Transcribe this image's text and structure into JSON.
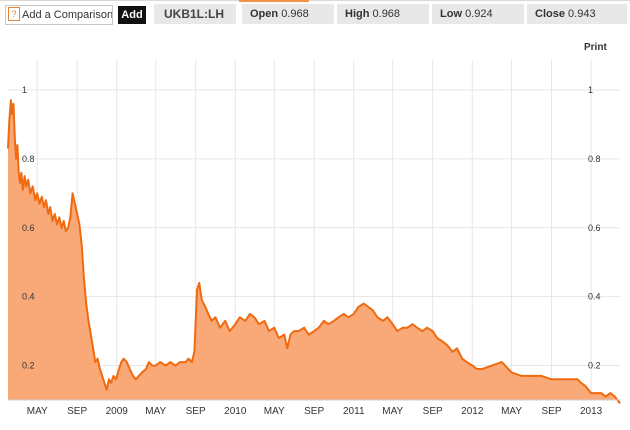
{
  "toolbar": {
    "help_glyph": "?",
    "compare_label": "Add a Comparison",
    "add_label": "Add",
    "ticker": "UKB1L:LH",
    "open_label": "Open",
    "open_value": "0.968",
    "high_label": "High",
    "high_value": "0.968",
    "low_label": "Low",
    "low_value": "0.924",
    "close_label": "Close",
    "close_value": "0.943"
  },
  "print_label": "Print",
  "colors": {
    "line": "#f06a0f",
    "fill": "#f9a878",
    "grid": "#e6e6e6",
    "accent": "#f29346"
  },
  "chart_data": {
    "type": "area",
    "title": "",
    "xlabel": "",
    "ylabel": "",
    "ylim": [
      0.1,
      1.0
    ],
    "xlim": [
      "2008-02-01",
      "2013-03-31"
    ],
    "grid": true,
    "y_ticks_left": [
      "1",
      "0.8",
      "0.6",
      "0.4",
      "0.2"
    ],
    "y_ticks_right": [
      "1",
      "0.8",
      "0.6",
      "0.4",
      "0.2"
    ],
    "y_tick_values": [
      1.0,
      0.8,
      0.6,
      0.4,
      0.2
    ],
    "x_ticks": [
      {
        "label": "MAY",
        "date": "2008-05-01"
      },
      {
        "label": "SEP",
        "date": "2008-09-01"
      },
      {
        "label": "2009",
        "date": "2009-01-01"
      },
      {
        "label": "MAY",
        "date": "2009-05-01"
      },
      {
        "label": "SEP",
        "date": "2009-09-01"
      },
      {
        "label": "2010",
        "date": "2010-01-01"
      },
      {
        "label": "MAY",
        "date": "2010-05-01"
      },
      {
        "label": "SEP",
        "date": "2010-09-01"
      },
      {
        "label": "2011",
        "date": "2011-01-01"
      },
      {
        "label": "MAY",
        "date": "2011-05-01"
      },
      {
        "label": "SEP",
        "date": "2011-09-01"
      },
      {
        "label": "2012",
        "date": "2012-01-01"
      },
      {
        "label": "MAY",
        "date": "2012-05-01"
      },
      {
        "label": "SEP",
        "date": "2012-09-01"
      },
      {
        "label": "2013",
        "date": "2013-01-01"
      }
    ],
    "series": [
      {
        "x": [
          "2008-02-01",
          "2008-02-05",
          "2008-02-10",
          "2008-02-14",
          "2008-02-18",
          "2008-02-22",
          "2008-02-26",
          "2008-03-01",
          "2008-03-05",
          "2008-03-09",
          "2008-03-13",
          "2008-03-18",
          "2008-03-23",
          "2008-03-28",
          "2008-04-03",
          "2008-04-10",
          "2008-04-17",
          "2008-04-25",
          "2008-05-01",
          "2008-05-08",
          "2008-05-15",
          "2008-05-22",
          "2008-05-28",
          "2008-06-04",
          "2008-06-10",
          "2008-06-17",
          "2008-06-24",
          "2008-07-01",
          "2008-07-08",
          "2008-07-15",
          "2008-07-22",
          "2008-07-28",
          "2008-08-04",
          "2008-08-11",
          "2008-08-18",
          "2008-08-25",
          "2008-09-01",
          "2008-09-08",
          "2008-09-15",
          "2008-09-22",
          "2008-09-29",
          "2008-10-06",
          "2008-10-13",
          "2008-10-20",
          "2008-10-27",
          "2008-11-03",
          "2008-11-10",
          "2008-11-17",
          "2008-11-24",
          "2008-12-01",
          "2008-12-08",
          "2008-12-15",
          "2008-12-22",
          "2008-12-30",
          "2009-01-08",
          "2009-01-15",
          "2009-01-22",
          "2009-02-01",
          "2009-02-10",
          "2009-02-20",
          "2009-03-01",
          "2009-03-10",
          "2009-03-20",
          "2009-04-01",
          "2009-04-10",
          "2009-04-20",
          "2009-05-01",
          "2009-05-15",
          "2009-06-01",
          "2009-06-15",
          "2009-07-01",
          "2009-07-15",
          "2009-08-01",
          "2009-08-10",
          "2009-08-20",
          "2009-08-28",
          "2009-09-05",
          "2009-09-12",
          "2009-09-20",
          "2009-10-01",
          "2009-10-10",
          "2009-10-20",
          "2009-11-01",
          "2009-11-15",
          "2009-12-01",
          "2009-12-15",
          "2010-01-01",
          "2010-01-15",
          "2010-02-01",
          "2010-02-15",
          "2010-03-01",
          "2010-03-15",
          "2010-04-01",
          "2010-04-15",
          "2010-05-01",
          "2010-05-15",
          "2010-06-01",
          "2010-06-10",
          "2010-06-20",
          "2010-07-01",
          "2010-07-15",
          "2010-08-01",
          "2010-08-15",
          "2010-09-01",
          "2010-09-15",
          "2010-10-01",
          "2010-10-15",
          "2010-11-01",
          "2010-11-15",
          "2010-12-01",
          "2010-12-15",
          "2011-01-01",
          "2011-01-15",
          "2011-02-01",
          "2011-02-15",
          "2011-03-01",
          "2011-03-15",
          "2011-04-01",
          "2011-04-15",
          "2011-05-01",
          "2011-05-15",
          "2011-06-01",
          "2011-06-15",
          "2011-07-01",
          "2011-07-15",
          "2011-08-01",
          "2011-08-15",
          "2011-09-01",
          "2011-09-15",
          "2011-10-01",
          "2011-10-15",
          "2011-11-01",
          "2011-11-15",
          "2011-12-01",
          "2011-12-15",
          "2012-01-01",
          "2012-01-15",
          "2012-02-01",
          "2012-03-01",
          "2012-04-01",
          "2012-05-01",
          "2012-06-01",
          "2012-07-01",
          "2012-08-01",
          "2012-09-01",
          "2012-10-01",
          "2012-11-01",
          "2012-11-20",
          "2012-12-01",
          "2012-12-15",
          "2013-01-01",
          "2013-01-15",
          "2013-02-01",
          "2013-02-15",
          "2013-03-01",
          "2013-03-15",
          "2013-03-31"
        ],
        "values": [
          0.83,
          0.91,
          0.97,
          0.93,
          0.96,
          0.86,
          0.8,
          0.84,
          0.76,
          0.73,
          0.76,
          0.71,
          0.75,
          0.72,
          0.74,
          0.7,
          0.72,
          0.68,
          0.7,
          0.67,
          0.69,
          0.66,
          0.68,
          0.64,
          0.66,
          0.62,
          0.64,
          0.61,
          0.63,
          0.6,
          0.62,
          0.59,
          0.6,
          0.63,
          0.7,
          0.67,
          0.64,
          0.61,
          0.55,
          0.45,
          0.38,
          0.33,
          0.29,
          0.25,
          0.21,
          0.22,
          0.19,
          0.17,
          0.15,
          0.13,
          0.16,
          0.15,
          0.17,
          0.16,
          0.19,
          0.21,
          0.22,
          0.21,
          0.19,
          0.17,
          0.16,
          0.17,
          0.18,
          0.19,
          0.21,
          0.2,
          0.2,
          0.21,
          0.2,
          0.21,
          0.2,
          0.21,
          0.21,
          0.22,
          0.21,
          0.24,
          0.42,
          0.44,
          0.39,
          0.37,
          0.35,
          0.33,
          0.34,
          0.31,
          0.33,
          0.3,
          0.32,
          0.34,
          0.33,
          0.35,
          0.34,
          0.32,
          0.33,
          0.3,
          0.31,
          0.28,
          0.29,
          0.25,
          0.29,
          0.3,
          0.3,
          0.31,
          0.29,
          0.3,
          0.31,
          0.33,
          0.32,
          0.33,
          0.34,
          0.35,
          0.34,
          0.35,
          0.37,
          0.38,
          0.37,
          0.36,
          0.34,
          0.33,
          0.34,
          0.32,
          0.3,
          0.31,
          0.31,
          0.32,
          0.31,
          0.3,
          0.31,
          0.3,
          0.28,
          0.27,
          0.26,
          0.24,
          0.25,
          0.22,
          0.21,
          0.2,
          0.19,
          0.19,
          0.2,
          0.21,
          0.18,
          0.17,
          0.17,
          0.17,
          0.16,
          0.16,
          0.16,
          0.16,
          0.15,
          0.14,
          0.12,
          0.12,
          0.12,
          0.11,
          0.12,
          0.11,
          0.09
        ]
      }
    ]
  }
}
